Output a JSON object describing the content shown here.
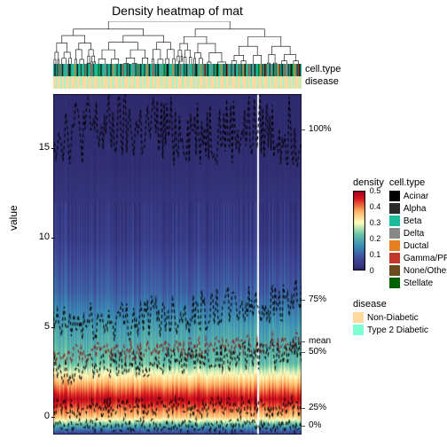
{
  "title": "Density heatmap of mat",
  "y_axis": {
    "label": "value",
    "min": -1,
    "max": 18,
    "ticks": [
      0,
      5,
      10,
      15
    ],
    "fontsize": 11
  },
  "annotations": {
    "labels": [
      "cell.type",
      "disease"
    ],
    "celltype_colors": [
      "#000000",
      "#2a2a2a",
      "#1abc9c",
      "#888888",
      "#e67e22",
      "#c0392b",
      "#6b4a1f",
      "#006400"
    ],
    "celltype_pattern": [
      2,
      0,
      2,
      1,
      2,
      5,
      2,
      0,
      2,
      2,
      3,
      2,
      1,
      0,
      2,
      2,
      2,
      4,
      2,
      0,
      2,
      2,
      1,
      2,
      2,
      6,
      2,
      0,
      2,
      2,
      5,
      2,
      1,
      2,
      2,
      2,
      7,
      2,
      0,
      2,
      2,
      3,
      2,
      1,
      2,
      2,
      0,
      2,
      4,
      2,
      2,
      1,
      2,
      2,
      0,
      2,
      5,
      2,
      2,
      1,
      2,
      0,
      2,
      2,
      3,
      2,
      1,
      2,
      6,
      2,
      0,
      2,
      2,
      1,
      2,
      4,
      2,
      0,
      2,
      2,
      5,
      2,
      1,
      2,
      0,
      2,
      2,
      3,
      2,
      7,
      2,
      1,
      0,
      2,
      2,
      2,
      4,
      2,
      1,
      2,
      0,
      2,
      5,
      2,
      2,
      1,
      2,
      0,
      2,
      3,
      2,
      2,
      6,
      2,
      1,
      0,
      2,
      2,
      4,
      2,
      2,
      5,
      1,
      2,
      0,
      2,
      2,
      3,
      2,
      1,
      2,
      7,
      0,
      2,
      2,
      4,
      2,
      1,
      2,
      0,
      5,
      2,
      2,
      1,
      2,
      3,
      0,
      2,
      2,
      6,
      2,
      1,
      2,
      4,
      0,
      2,
      2,
      5,
      2,
      1,
      2,
      3,
      0,
      2,
      2,
      7,
      2,
      4,
      1,
      2,
      0,
      5,
      2,
      2,
      1,
      3,
      2,
      0,
      2,
      6,
      2,
      4,
      1,
      2,
      0,
      2,
      5,
      2,
      3,
      1,
      2,
      0,
      7,
      2,
      4,
      2,
      1,
      5,
      0,
      2
    ],
    "disease_colors": [
      "#ffd9a0",
      "#7fffd4"
    ],
    "disease_pattern": [
      0,
      0,
      1,
      0,
      0,
      0,
      1,
      0,
      0,
      1,
      0,
      0,
      0,
      1,
      0,
      0,
      0,
      0,
      1,
      0,
      0,
      0,
      1,
      0,
      0,
      0,
      0,
      1,
      0,
      0,
      0,
      1,
      0,
      0,
      0,
      0,
      1,
      0,
      0,
      1,
      0,
      0,
      0,
      0,
      1,
      0,
      0,
      0,
      1,
      0,
      0,
      0,
      0,
      1,
      0,
      0,
      1,
      0,
      0,
      0,
      0,
      1,
      0,
      0,
      0,
      1,
      0,
      0,
      0,
      0,
      1,
      0,
      0,
      1,
      0,
      0,
      0,
      0,
      1,
      0,
      0,
      0,
      1,
      0,
      0,
      0,
      0,
      1,
      0,
      0,
      0,
      1,
      0,
      0,
      0,
      0,
      1,
      0,
      0,
      1,
      0,
      0,
      0,
      0,
      1,
      0,
      0,
      0,
      1,
      0,
      0,
      0,
      0,
      1,
      0,
      0,
      1,
      0,
      0,
      0,
      0,
      1,
      0,
      0,
      0,
      1,
      0,
      0,
      0,
      0,
      1,
      0,
      0,
      1,
      0,
      0,
      0,
      0,
      1,
      0,
      0,
      0,
      1,
      0,
      0,
      0,
      0,
      1,
      0,
      0,
      0,
      1,
      0,
      0,
      0,
      0,
      1,
      0,
      0,
      1,
      0,
      0,
      0,
      0,
      1,
      0,
      0,
      0,
      1,
      0,
      0,
      0,
      0,
      1,
      0,
      0,
      1,
      0,
      0,
      0,
      0,
      1,
      0,
      0,
      0,
      1,
      0,
      0,
      0,
      0,
      1,
      0,
      0,
      1,
      0,
      0,
      0,
      0,
      1,
      0
    ]
  },
  "density_colormap": [
    {
      "stop": 0.0,
      "color": "#2f2a6d"
    },
    {
      "stop": 0.15,
      "color": "#3f4b9b"
    },
    {
      "stop": 0.3,
      "color": "#3a8bb5"
    },
    {
      "stop": 0.45,
      "color": "#66c2a5"
    },
    {
      "stop": 0.6,
      "color": "#ffffbf"
    },
    {
      "stop": 0.75,
      "color": "#fdae61"
    },
    {
      "stop": 0.9,
      "color": "#d7191c"
    },
    {
      "stop": 1.0,
      "color": "#a50021"
    }
  ],
  "density_profile": [
    {
      "y": 18,
      "d": 0.0
    },
    {
      "y": 14,
      "d": 0.02
    },
    {
      "y": 10,
      "d": 0.08
    },
    {
      "y": 7,
      "d": 0.2
    },
    {
      "y": 5,
      "d": 0.35
    },
    {
      "y": 3,
      "d": 0.45
    },
    {
      "y": 1,
      "d": 0.95
    },
    {
      "y": 0,
      "d": 0.7
    },
    {
      "y": -1,
      "d": 0.05
    }
  ],
  "white_column_at": 0.82,
  "quantiles": {
    "series": [
      {
        "name": "100%",
        "col": "#000000",
        "dash": "4,3",
        "base": 16.0,
        "vary": 2.0
      },
      {
        "name": "75%",
        "col": "#000000",
        "dash": "4,3",
        "base": 5.0,
        "vary": 1.2,
        "trend": 1.5
      },
      {
        "name": "mean",
        "col": "#8b1a1a",
        "dash": "4,3",
        "base": 3.4,
        "vary": 0.6,
        "trend": 0.8
      },
      {
        "name": "50%",
        "col": "#000000",
        "dash": "4,3",
        "base": 2.6,
        "vary": 0.8,
        "trend": 1.0
      },
      {
        "name": "25%",
        "col": "#000000",
        "dash": "4,3",
        "base": 0.5,
        "vary": 0.6
      },
      {
        "name": "0%",
        "col": "#000000",
        "dash": "4,3",
        "base": -0.5,
        "vary": 0.4
      }
    ],
    "n_points": 180
  },
  "legends": {
    "density": {
      "title": "density",
      "ticks": [
        0,
        0.1,
        0.2,
        0.3,
        0.4,
        0.5
      ]
    },
    "celltype": {
      "title": "cell.type",
      "items": [
        {
          "label": "Acinar",
          "color": "#000000"
        },
        {
          "label": "Alpha",
          "color": "#2a2a2a"
        },
        {
          "label": "Beta",
          "color": "#1abc9c"
        },
        {
          "label": "Delta",
          "color": "#888888"
        },
        {
          "label": "Ductal",
          "color": "#e67e22"
        },
        {
          "label": "Gamma/PP",
          "color": "#c0392b"
        },
        {
          "label": "None/Other",
          "color": "#6b4a1f"
        },
        {
          "label": "Stellate",
          "color": "#006400"
        }
      ]
    },
    "disease": {
      "title": "disease",
      "items": [
        {
          "label": "Non-Diabetic",
          "color": "#ffd9a0"
        },
        {
          "label": "Type 2 Diabetic",
          "color": "#7fffd4"
        }
      ]
    }
  }
}
